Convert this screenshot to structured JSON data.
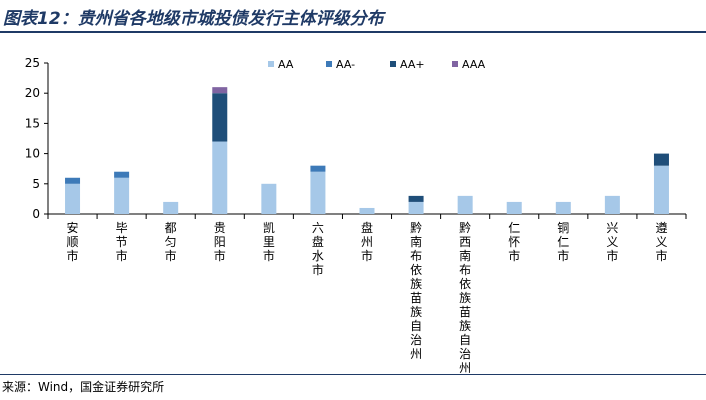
{
  "header": {
    "title": "图表12：贵州省各地级市城投债发行主体评级分布"
  },
  "footer": {
    "source": "来源：Wind，国金证券研究所"
  },
  "chart_data": {
    "type": "bar",
    "stacked": true,
    "title": "",
    "xlabel": "",
    "ylabel": "",
    "ylim": [
      0,
      25
    ],
    "yticks": [
      0,
      5,
      10,
      15,
      20,
      25
    ],
    "legend_position": "top-right",
    "grid": false,
    "categories": [
      "安顺市",
      "毕节市",
      "都匀市",
      "贵阳市",
      "凯里市",
      "六盘水市",
      "盘州市",
      "黔南布依族苗族自治州",
      "黔西南布依族苗族自治州",
      "仁怀市",
      "铜仁市",
      "兴义市",
      "遵义市"
    ],
    "series": [
      {
        "name": "AA",
        "color": "#a6c8e8",
        "values": [
          5,
          6,
          2,
          12,
          5,
          7,
          1,
          2,
          3,
          2,
          2,
          3,
          8
        ]
      },
      {
        "name": "AA-",
        "color": "#3d7ab8",
        "values": [
          1,
          1,
          0,
          0,
          0,
          1,
          0,
          0,
          0,
          0,
          0,
          0,
          0
        ]
      },
      {
        "name": "AA+",
        "color": "#1f4e79",
        "values": [
          0,
          0,
          0,
          8,
          0,
          0,
          0,
          1,
          0,
          0,
          0,
          0,
          2
        ]
      },
      {
        "name": "AAA",
        "color": "#8064a2",
        "values": [
          0,
          0,
          0,
          1,
          0,
          0,
          0,
          0,
          0,
          0,
          0,
          0,
          0
        ]
      }
    ]
  }
}
